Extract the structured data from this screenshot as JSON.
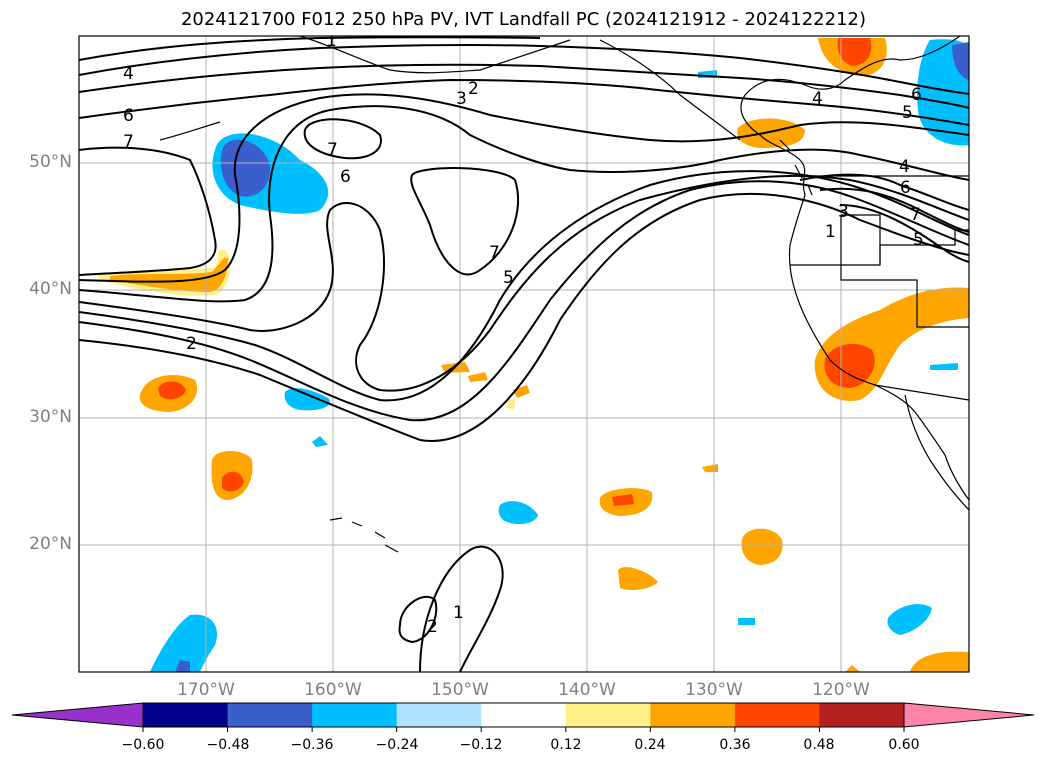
{
  "title": "2024121700 F012 250 hPa PV, IVT Landfall PC (2024121912 - 2024122212)",
  "map": {
    "lon_range": [
      -180,
      -110
    ],
    "lat_range": [
      10,
      60
    ],
    "lat_labels": [
      {
        "lat": 50,
        "text": "50°N"
      },
      {
        "lat": 40,
        "text": "40°N"
      },
      {
        "lat": 30,
        "text": "30°N"
      },
      {
        "lat": 20,
        "text": "20°N"
      }
    ],
    "lon_labels": [
      {
        "lon": -170,
        "text": "170°W"
      },
      {
        "lon": -160,
        "text": "160°W"
      },
      {
        "lon": -150,
        "text": "150°W"
      },
      {
        "lon": -140,
        "text": "140°W"
      },
      {
        "lon": -130,
        "text": "130°W"
      },
      {
        "lon": -120,
        "text": "120°W"
      }
    ],
    "contour_labels": [
      "1",
      "2",
      "3",
      "4",
      "5",
      "6",
      "7"
    ]
  },
  "colorbar": {
    "colors": [
      "#9932cc",
      "#00008b",
      "#3a5fcd",
      "#00bfff",
      "#b0e2ff",
      "#ffffff",
      "#fff08a",
      "#ffa500",
      "#ff4500",
      "#b22222",
      "#ff85a8"
    ],
    "tick_labels": [
      "−0.60",
      "−0.48",
      "−0.36",
      "−0.24",
      "−0.12",
      "0.12",
      "0.24",
      "0.36",
      "0.48",
      "0.60"
    ]
  }
}
